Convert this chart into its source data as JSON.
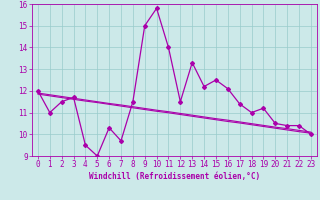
{
  "x": [
    0,
    1,
    2,
    3,
    4,
    5,
    6,
    7,
    8,
    9,
    10,
    11,
    12,
    13,
    14,
    15,
    16,
    17,
    18,
    19,
    20,
    21,
    22,
    23
  ],
  "y_main": [
    12.0,
    11.0,
    11.5,
    11.7,
    9.5,
    9.0,
    10.3,
    9.7,
    11.5,
    15.0,
    15.8,
    14.0,
    11.5,
    13.3,
    12.2,
    12.5,
    12.1,
    11.4,
    11.0,
    11.2,
    10.5,
    10.4,
    10.4,
    10.0
  ],
  "y_reg1": [
    11.85,
    11.77,
    11.69,
    11.61,
    11.53,
    11.46,
    11.38,
    11.3,
    11.22,
    11.14,
    11.06,
    10.99,
    10.91,
    10.83,
    10.75,
    10.67,
    10.59,
    10.52,
    10.44,
    10.36,
    10.28,
    10.2,
    10.12,
    10.05
  ],
  "y_reg2": [
    11.9,
    11.82,
    11.74,
    11.66,
    11.58,
    11.5,
    11.42,
    11.35,
    11.27,
    11.19,
    11.11,
    11.04,
    10.96,
    10.88,
    10.8,
    10.72,
    10.65,
    10.57,
    10.49,
    10.41,
    10.33,
    10.26,
    10.18,
    10.1
  ],
  "background_color": "#cce9e9",
  "line_color": "#aa00aa",
  "grid_color": "#99cccc",
  "ylim": [
    9,
    16
  ],
  "xlim": [
    -0.5,
    23.5
  ],
  "yticks": [
    9,
    10,
    11,
    12,
    13,
    14,
    15,
    16
  ],
  "xticks": [
    0,
    1,
    2,
    3,
    4,
    5,
    6,
    7,
    8,
    9,
    10,
    11,
    12,
    13,
    14,
    15,
    16,
    17,
    18,
    19,
    20,
    21,
    22,
    23
  ],
  "xlabel": "Windchill (Refroidissement éolien,°C)",
  "tick_fontsize": 5.5,
  "xlabel_fontsize": 5.5
}
